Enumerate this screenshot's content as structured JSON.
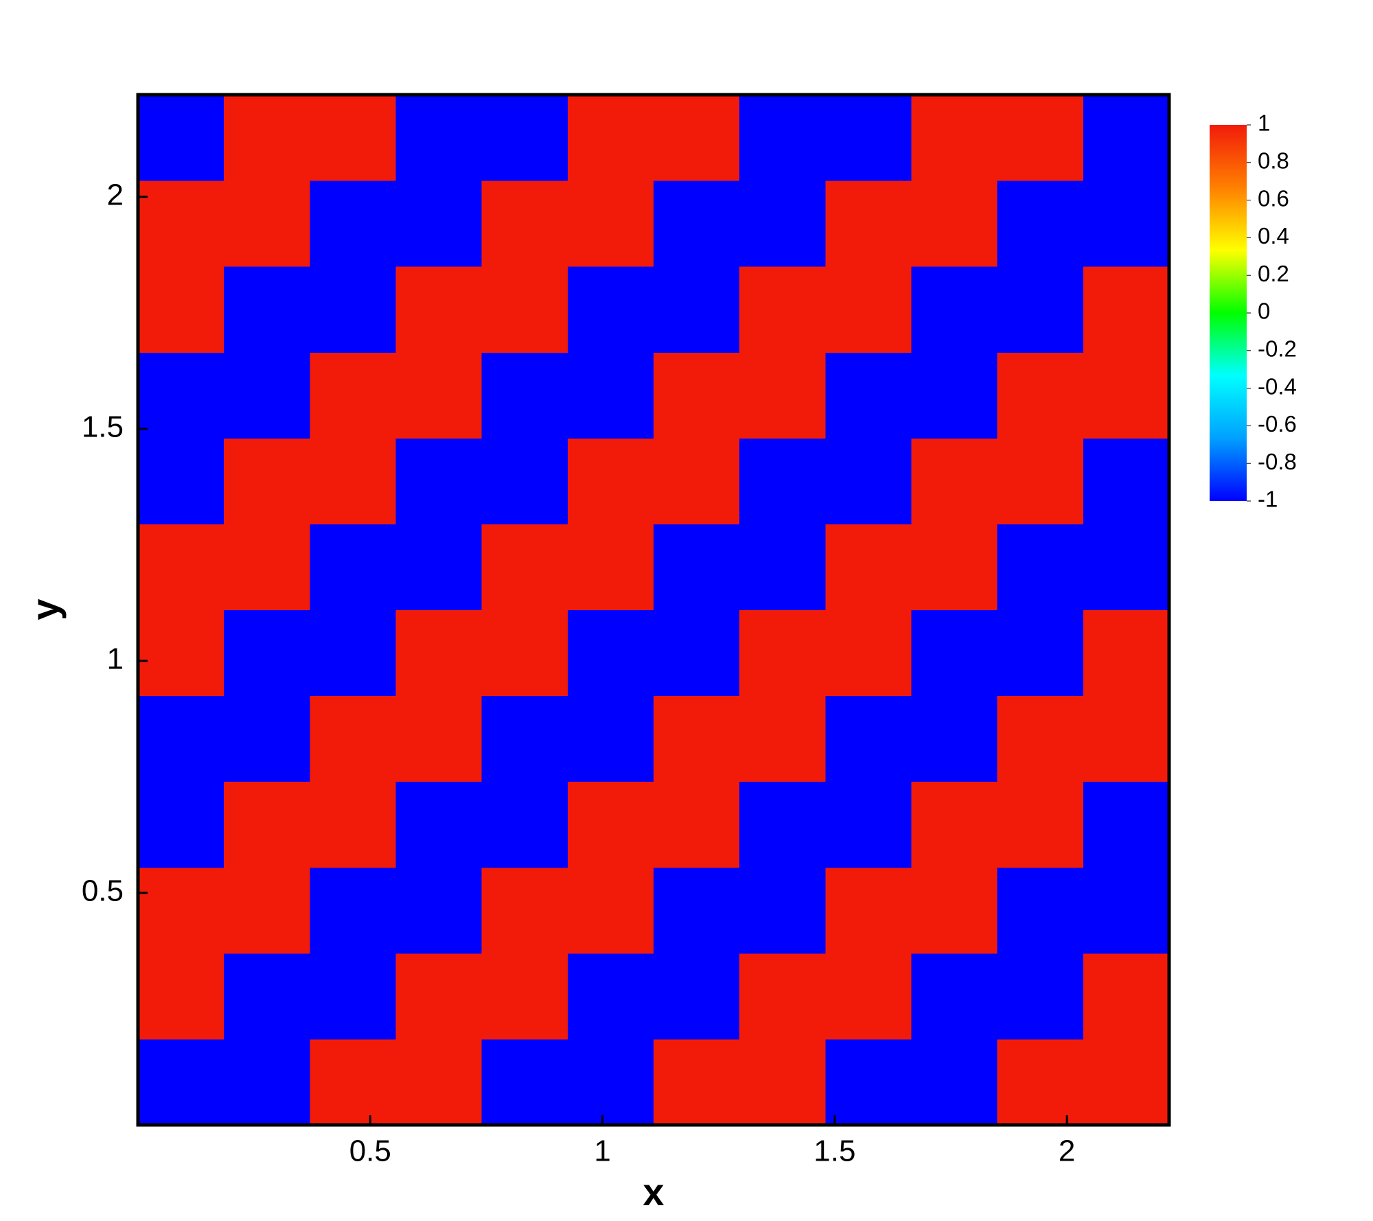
{
  "chart_data": {
    "type": "contour",
    "x_label": "x",
    "y_label": "y",
    "xlim": [
      0,
      2.22
    ],
    "ylim": [
      0,
      2.22
    ],
    "xticks": [
      0.5,
      1,
      1.5,
      2
    ],
    "yticks": [
      0.5,
      1,
      1.5,
      2
    ],
    "zlim": [
      -1,
      1
    ],
    "colorbar_ticks": [
      1,
      0.8,
      0.6,
      0.4,
      0.2,
      0,
      -0.2,
      -0.4,
      -0.6,
      -0.8,
      -1
    ],
    "colormap": [
      "#0000ff",
      "#00a0ff",
      "#00ffff",
      "#00ff00",
      "#ffff00",
      "#ff8000",
      "#f21b0a"
    ],
    "z": [
      [
        -1,
        -1,
        1,
        1,
        -1,
        -1,
        1,
        1,
        -1,
        -1,
        1,
        1
      ],
      [
        1,
        -1,
        -1,
        1,
        1,
        -1,
        -1,
        1,
        1,
        -1,
        -1,
        1
      ],
      [
        1,
        1,
        -1,
        -1,
        1,
        1,
        -1,
        -1,
        1,
        1,
        -1,
        -1
      ],
      [
        -1,
        1,
        1,
        -1,
        -1,
        1,
        1,
        -1,
        -1,
        1,
        1,
        -1
      ],
      [
        -1,
        -1,
        1,
        1,
        -1,
        -1,
        1,
        1,
        -1,
        -1,
        1,
        1
      ],
      [
        1,
        -1,
        -1,
        1,
        1,
        -1,
        -1,
        1,
        1,
        -1,
        -1,
        1
      ],
      [
        1,
        1,
        -1,
        -1,
        1,
        1,
        -1,
        -1,
        1,
        1,
        -1,
        -1
      ],
      [
        -1,
        1,
        1,
        -1,
        -1,
        1,
        1,
        -1,
        -1,
        1,
        1,
        -1
      ],
      [
        -1,
        -1,
        1,
        1,
        -1,
        -1,
        1,
        1,
        -1,
        -1,
        1,
        1
      ],
      [
        1,
        -1,
        -1,
        1,
        1,
        -1,
        -1,
        1,
        1,
        -1,
        -1,
        1
      ],
      [
        1,
        1,
        -1,
        -1,
        1,
        1,
        -1,
        -1,
        1,
        1,
        -1,
        -1
      ],
      [
        -1,
        1,
        1,
        -1,
        -1,
        1,
        1,
        -1,
        -1,
        1,
        1,
        -1
      ]
    ]
  }
}
